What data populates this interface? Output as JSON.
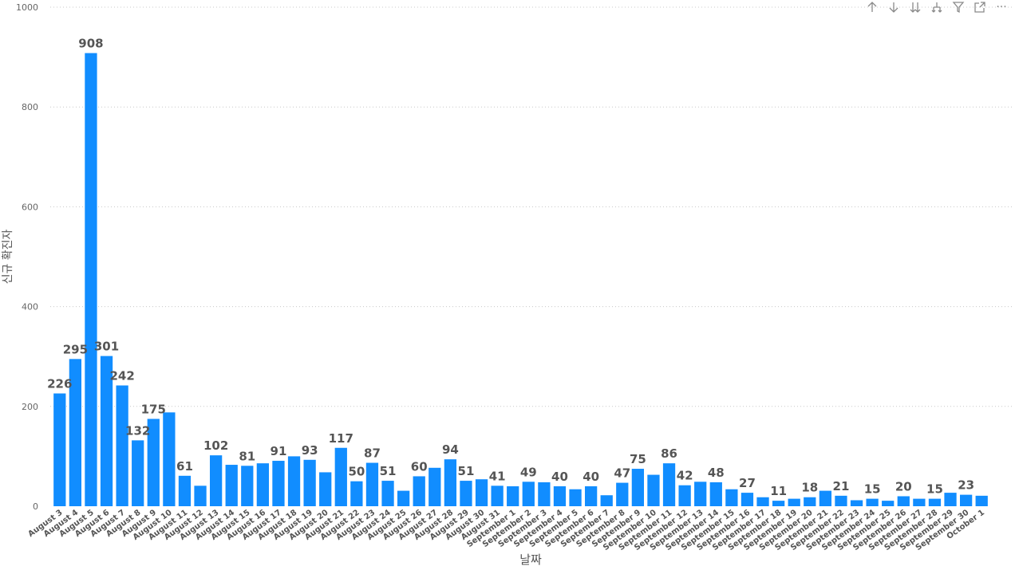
{
  "toolbar": {
    "icons": [
      "drill-up-icon",
      "drill-down-icon",
      "expand-next-level-icon",
      "expand-hierarchy-icon",
      "filter-icon",
      "focus-mode-icon",
      "more-options-icon"
    ]
  },
  "chart_data": {
    "type": "bar",
    "xlabel": "날짜",
    "ylabel": "신규 확진자",
    "ylim": [
      0,
      1000
    ],
    "yticks": [
      0,
      200,
      400,
      600,
      800,
      1000
    ],
    "grid": true,
    "bar_color": "#118DFF",
    "label_color": "#555555",
    "categories": [
      "August 3",
      "August 4",
      "August 5",
      "August 6",
      "August 7",
      "August 8",
      "August 9",
      "August 10",
      "August 11",
      "August 12",
      "August 13",
      "August 14",
      "August 15",
      "August 16",
      "August 17",
      "August 18",
      "August 19",
      "August 20",
      "August 21",
      "August 22",
      "August 23",
      "August 24",
      "August 25",
      "August 26",
      "August 27",
      "August 28",
      "August 29",
      "August 30",
      "August 31",
      "September 1",
      "September 2",
      "September 3",
      "September 4",
      "September 5",
      "September 6",
      "September 7",
      "September 8",
      "September 9",
      "September 10",
      "September 11",
      "September 12",
      "September 13",
      "September 14",
      "September 15",
      "September 16",
      "September 17",
      "September 18",
      "September 19",
      "September 20",
      "September 21",
      "September 22",
      "September 23",
      "September 24",
      "September 25",
      "September 26",
      "September 27",
      "September 28",
      "September 29",
      "September 30",
      "October 1"
    ],
    "values": [
      226,
      295,
      908,
      301,
      242,
      132,
      175,
      188,
      61,
      41,
      102,
      83,
      81,
      86,
      91,
      100,
      93,
      68,
      117,
      50,
      87,
      51,
      31,
      60,
      77,
      94,
      51,
      54,
      41,
      40,
      49,
      48,
      40,
      34,
      40,
      22,
      47,
      75,
      63,
      86,
      42,
      49,
      48,
      34,
      27,
      18,
      11,
      15,
      18,
      31,
      21,
      12,
      15,
      11,
      20,
      15,
      15,
      27,
      23,
      21
    ],
    "labels": [
      "226",
      "295",
      "908",
      "301",
      "242",
      "132",
      "175",
      "",
      "61",
      "",
      "102",
      "",
      "81",
      "",
      "91",
      "",
      "93",
      "",
      "117",
      "50",
      "87",
      "51",
      "",
      "60",
      "",
      "94",
      "51",
      "",
      "41",
      "",
      "49",
      "",
      "40",
      "",
      "40",
      "",
      "47",
      "75",
      "",
      "86",
      "42",
      "",
      "48",
      "",
      "27",
      "",
      "11",
      "",
      "18",
      "",
      "21",
      "",
      "15",
      "",
      "20",
      "",
      "15",
      "",
      "23",
      ""
    ]
  }
}
